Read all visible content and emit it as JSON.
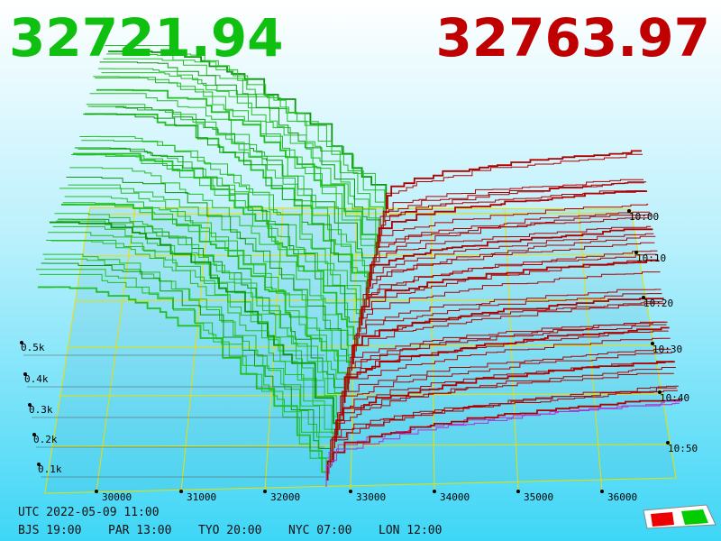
{
  "bid_price": "32721.94",
  "ask_price": "32763.97",
  "price_axis": [
    "30000",
    "31000",
    "32000",
    "33000",
    "34000",
    "35000",
    "36000"
  ],
  "volume_axis": [
    "0.1k",
    "0.2k",
    "0.3k",
    "0.4k",
    "0.5k"
  ],
  "time_axis": [
    "10:00",
    "10:10",
    "10:20",
    "10:30",
    "10:40",
    "10:50"
  ],
  "utc": "UTC 2022-05-09 11:00",
  "clocks": [
    "BJS 19:00",
    "PAR 13:00",
    "TYO 20:00",
    "NYC 07:00",
    "LON 12:00"
  ]
}
